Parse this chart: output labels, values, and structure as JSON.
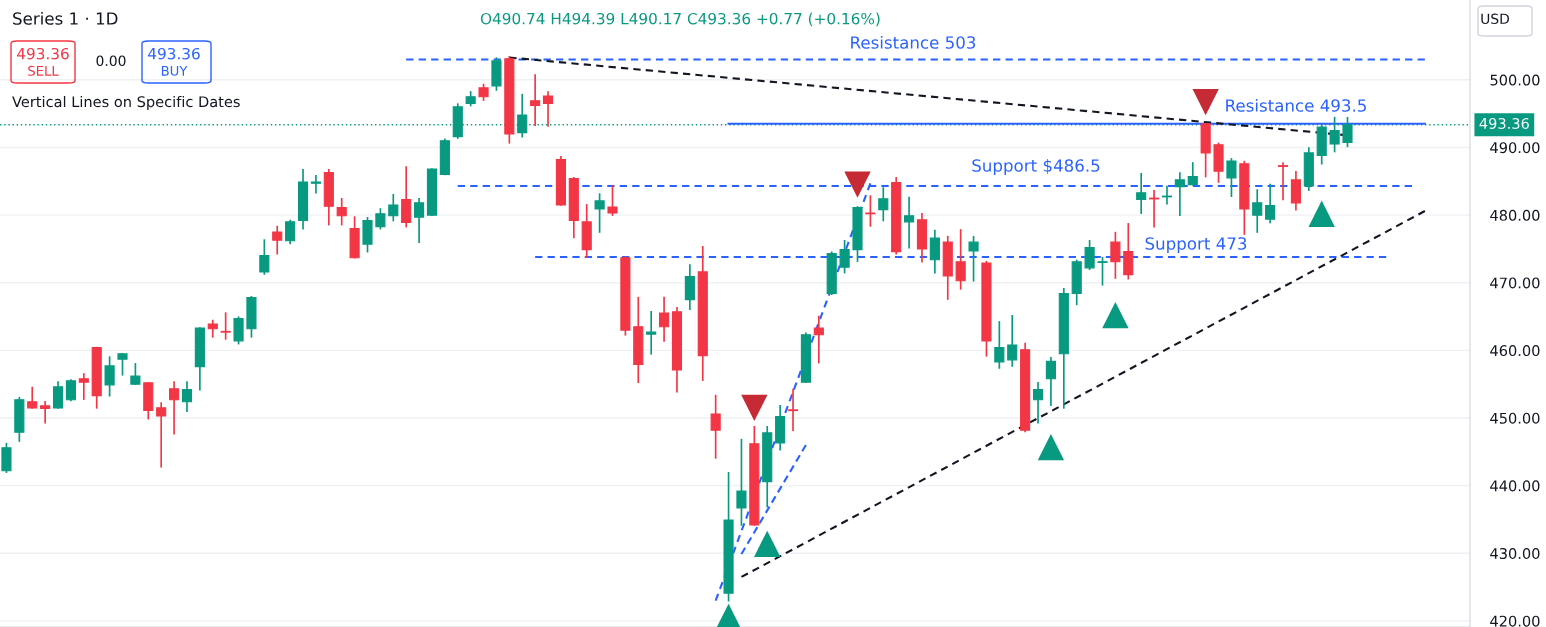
{
  "chart_data": {
    "type": "candlestick",
    "title": "Series 1 · 1D",
    "categories": [
      null,
      null,
      null,
      null,
      null,
      null,
      null,
      null,
      null,
      null,
      null,
      null,
      null,
      null,
      null,
      null,
      null,
      null,
      null,
      null,
      null,
      null,
      null,
      null,
      null,
      null,
      null,
      null,
      null,
      null,
      null,
      null,
      null,
      null,
      null,
      null,
      null,
      null,
      null,
      null,
      null,
      null,
      null,
      null,
      null,
      null,
      null,
      null,
      null,
      null,
      null,
      null,
      null,
      null,
      null,
      null,
      null,
      null,
      null,
      null,
      null,
      null,
      null,
      null,
      null,
      null,
      null,
      null,
      null,
      null,
      null,
      null,
      null,
      null,
      null,
      null,
      null,
      null,
      null,
      null,
      null,
      null,
      null,
      null,
      null,
      null,
      null,
      null,
      null,
      null,
      null,
      null,
      null,
      null,
      null,
      null,
      null,
      null,
      null,
      null,
      null,
      null,
      null,
      null,
      null,
      null,
      null,
      null,
      null,
      null,
      null,
      null,
      null,
      null
    ],
    "ohlc": [
      [
        442.2,
        446.2,
        442.0,
        445.6
      ],
      [
        447.9,
        453.0,
        446.6,
        452.7
      ],
      [
        452.4,
        454.5,
        451.5,
        451.5
      ],
      [
        451.8,
        452.4,
        449.3,
        451.4
      ],
      [
        451.5,
        455.3,
        451.5,
        454.6
      ],
      [
        452.7,
        455.6,
        452.6,
        455.5
      ],
      [
        455.8,
        456.5,
        452.8,
        455.3
      ],
      [
        460.4,
        460.4,
        451.5,
        453.3
      ],
      [
        454.9,
        459.0,
        453.3,
        457.7
      ],
      [
        458.7,
        459.5,
        456.4,
        459.5
      ],
      [
        455.0,
        458.0,
        455.0,
        456.2
      ],
      [
        455.2,
        455.2,
        449.9,
        451.1
      ],
      [
        451.5,
        452.2,
        442.8,
        450.3
      ],
      [
        454.3,
        455.3,
        447.7,
        452.7
      ],
      [
        452.4,
        455.3,
        451.0,
        454.2
      ],
      [
        457.6,
        463.3,
        454.2,
        463.3
      ],
      [
        463.9,
        464.4,
        462.0,
        463.2
      ],
      [
        462.8,
        465.5,
        461.7,
        462.7
      ],
      [
        461.4,
        464.9,
        461.0,
        464.7
      ],
      [
        463.2,
        467.9,
        462.0,
        467.8
      ],
      [
        471.6,
        476.3,
        471.3,
        474.0
      ],
      [
        477.5,
        478.3,
        474.3,
        476.3
      ],
      [
        476.2,
        479.2,
        475.8,
        479.0
      ],
      [
        479.2,
        486.7,
        478.0,
        484.9
      ],
      [
        484.7,
        485.8,
        483.3,
        484.9
      ],
      [
        486.3,
        486.7,
        478.6,
        481.3
      ],
      [
        481.1,
        482.4,
        478.6,
        479.9
      ],
      [
        478.0,
        479.7,
        473.7,
        473.7
      ],
      [
        475.7,
        479.6,
        474.6,
        479.2
      ],
      [
        478.3,
        480.9,
        478.0,
        480.2
      ],
      [
        479.9,
        483.0,
        479.2,
        481.5
      ],
      [
        482.3,
        487.1,
        478.3,
        478.9
      ],
      [
        479.7,
        482.4,
        476.0,
        481.8
      ],
      [
        480.0,
        486.8,
        480.0,
        486.8
      ],
      [
        486.0,
        491.2,
        486.0,
        491.0
      ],
      [
        491.6,
        496.4,
        491.4,
        496.0
      ],
      [
        496.5,
        498.2,
        496.2,
        497.5
      ],
      [
        498.8,
        499.3,
        497.0,
        497.5
      ],
      [
        499.1,
        503.2,
        498.5,
        502.8
      ],
      [
        503.1,
        503.4,
        490.7,
        492.0
      ],
      [
        492.2,
        497.8,
        491.6,
        494.8
      ],
      [
        496.9,
        500.7,
        493.3,
        496.2
      ],
      [
        497.6,
        498.2,
        493.2,
        496.5
      ],
      [
        488.2,
        488.6,
        481.5,
        481.5
      ],
      [
        485.4,
        485.5,
        476.7,
        479.2
      ],
      [
        479.0,
        481.5,
        473.8,
        474.9
      ],
      [
        480.9,
        483.1,
        477.5,
        482.1
      ],
      [
        481.2,
        484.3,
        480.0,
        480.3
      ],
      [
        473.7,
        473.8,
        462.3,
        463.0
      ],
      [
        463.5,
        467.8,
        455.3,
        457.9
      ],
      [
        462.4,
        465.7,
        459.5,
        462.7
      ],
      [
        465.5,
        467.8,
        461.4,
        463.5
      ],
      [
        465.7,
        466.3,
        453.9,
        457.1
      ],
      [
        467.5,
        472.6,
        466.1,
        470.9
      ],
      [
        471.6,
        475.3,
        455.6,
        459.2
      ],
      [
        450.6,
        453.3,
        444.1,
        448.2
      ],
      [
        424.1,
        441.9,
        423.0,
        434.9
      ],
      [
        436.7,
        446.8,
        434.2,
        439.2
      ],
      [
        446.2,
        448.7,
        434.2,
        434.2
      ],
      [
        440.6,
        448.7,
        436.9,
        447.8
      ],
      [
        446.3,
        451.8,
        445.3,
        450.2
      ],
      [
        451.2,
        454.2,
        448.2,
        451.1
      ],
      [
        455.3,
        462.5,
        455.3,
        462.3
      ],
      [
        463.3,
        465.0,
        458.2,
        462.3
      ],
      [
        468.4,
        474.5,
        468.3,
        474.3
      ],
      [
        472.3,
        476.2,
        471.5,
        474.9
      ],
      [
        474.9,
        481.2,
        473.2,
        481.1
      ],
      [
        480.3,
        482.8,
        478.4,
        480.2
      ],
      [
        480.8,
        484.0,
        479.2,
        482.4
      ],
      [
        484.8,
        485.5,
        474.3,
        474.6
      ],
      [
        479.0,
        482.6,
        475.2,
        479.9
      ],
      [
        479.3,
        480.2,
        473.1,
        475.0
      ],
      [
        473.4,
        477.7,
        471.5,
        476.6
      ],
      [
        476.0,
        476.8,
        467.6,
        471.0
      ],
      [
        473.1,
        477.8,
        469.1,
        470.3
      ],
      [
        474.7,
        476.8,
        470.3,
        476.0
      ],
      [
        472.9,
        473.1,
        459.2,
        461.4
      ],
      [
        458.3,
        464.2,
        457.4,
        460.4
      ],
      [
        458.6,
        465.1,
        457.7,
        460.8
      ],
      [
        460.1,
        461.0,
        448.0,
        448.2
      ],
      [
        452.7,
        455.2,
        449.3,
        454.2
      ],
      [
        455.8,
        458.9,
        451.9,
        458.4
      ],
      [
        459.5,
        469.1,
        451.5,
        468.4
      ],
      [
        468.4,
        473.3,
        466.8,
        473.1
      ],
      [
        472.2,
        476.2,
        472.0,
        475.2
      ],
      [
        473.0,
        473.7,
        469.7,
        473.1
      ],
      [
        476.0,
        477.4,
        470.7,
        473.1
      ],
      [
        474.6,
        478.7,
        470.6,
        471.2
      ],
      [
        482.3,
        486.1,
        480.3,
        483.3
      ],
      [
        482.5,
        483.6,
        478.3,
        482.4
      ],
      [
        482.7,
        484.2,
        481.7,
        482.8
      ],
      [
        484.2,
        486.2,
        480.0,
        485.2
      ],
      [
        484.5,
        487.7,
        484.5,
        485.7
      ],
      [
        493.5,
        493.5,
        485.7,
        489.2
      ],
      [
        490.4,
        490.6,
        484.9,
        486.5
      ],
      [
        485.5,
        488.3,
        482.8,
        488.0
      ],
      [
        487.6,
        487.9,
        477.2,
        480.9
      ],
      [
        480.0,
        483.7,
        477.5,
        481.8
      ],
      [
        479.4,
        484.5,
        478.9,
        481.4
      ],
      [
        487.3,
        487.7,
        482.3,
        487.2
      ],
      [
        485.2,
        486.4,
        480.8,
        481.8
      ],
      [
        484.3,
        489.9,
        483.7,
        489.2
      ],
      [
        488.8,
        493.3,
        487.6,
        493.0
      ],
      [
        490.5,
        494.4,
        489.4,
        492.5
      ],
      [
        490.74,
        494.39,
        490.17,
        493.36
      ],
      null,
      null,
      null,
      null,
      null,
      null,
      null,
      null,
      null
    ],
    "series": [
      {
        "type": "line",
        "values": [
          null,
          null,
          null,
          null,
          null,
          null,
          null,
          null,
          null,
          null,
          null,
          null,
          null,
          null,
          null,
          null,
          null,
          null,
          null,
          null,
          null,
          null,
          null,
          null,
          null,
          null,
          null,
          null,
          null,
          null,
          null,
          503,
          null,
          null,
          null,
          null,
          null,
          null,
          null,
          null,
          null,
          null,
          null,
          null,
          null,
          null,
          null,
          null,
          null,
          null,
          null,
          null,
          null,
          null,
          null,
          null,
          null,
          null,
          null,
          null,
          null,
          null,
          null,
          null,
          null,
          null,
          null,
          null,
          null,
          null,
          null,
          null,
          null,
          null,
          null,
          null,
          null,
          null,
          null,
          null,
          null,
          null,
          null,
          null,
          null,
          null,
          null,
          null,
          null,
          null,
          null,
          null,
          null,
          null,
          null,
          null,
          null,
          null,
          null,
          null,
          null,
          null,
          null,
          null,
          null,
          null,
          null,
          null,
          null,
          null,
          503,
          null,
          null,
          null
        ],
        "color": "#2962ff",
        "line_style": "dashed"
      },
      {
        "type": "line",
        "values": [
          null,
          null,
          null,
          null,
          null,
          null,
          null,
          null,
          null,
          null,
          null,
          null,
          null,
          null,
          null,
          null,
          null,
          null,
          null,
          null,
          null,
          null,
          null,
          null,
          null,
          null,
          null,
          null,
          null,
          null,
          null,
          null,
          null,
          null,
          null,
          null,
          null,
          null,
          null,
          null,
          null,
          null,
          null,
          null,
          null,
          null,
          null,
          null,
          null,
          null,
          null,
          null,
          null,
          null,
          null,
          null,
          493.5,
          null,
          null,
          null,
          null,
          null,
          null,
          null,
          null,
          null,
          null,
          null,
          null,
          null,
          null,
          null,
          null,
          null,
          null,
          null,
          null,
          null,
          null,
          null,
          null,
          null,
          null,
          null,
          null,
          null,
          null,
          null,
          null,
          null,
          null,
          null,
          null,
          null,
          null,
          null,
          null,
          null,
          null,
          null,
          null,
          null,
          null,
          null,
          null,
          null,
          null,
          null,
          null,
          null,
          493.5,
          null,
          null,
          null
        ],
        "color": "#2962ff",
        "line_style": "solid"
      },
      {
        "type": "line",
        "values": [
          null,
          null,
          null,
          null,
          null,
          null,
          null,
          null,
          null,
          null,
          null,
          null,
          null,
          null,
          null,
          null,
          null,
          null,
          null,
          null,
          null,
          null,
          null,
          null,
          null,
          null,
          null,
          null,
          null,
          null,
          null,
          null,
          null,
          null,
          null,
          484.3,
          null,
          null,
          null,
          null,
          null,
          null,
          null,
          null,
          null,
          null,
          null,
          null,
          null,
          null,
          null,
          null,
          null,
          null,
          null,
          null,
          null,
          null,
          null,
          null,
          null,
          null,
          null,
          null,
          null,
          null,
          null,
          null,
          null,
          null,
          null,
          null,
          null,
          null,
          null,
          null,
          null,
          null,
          null,
          null,
          null,
          null,
          null,
          null,
          null,
          null,
          null,
          null,
          null,
          null,
          null,
          null,
          null,
          null,
          null,
          null,
          null,
          null,
          null,
          null,
          null,
          null,
          null,
          null,
          null,
          null,
          null,
          null,
          null,
          484.3,
          null,
          null,
          null,
          null
        ],
        "color": "#2962ff",
        "line_style": "dashed"
      },
      {
        "type": "line",
        "values": [
          null,
          null,
          null,
          null,
          null,
          null,
          null,
          null,
          null,
          null,
          null,
          null,
          null,
          null,
          null,
          null,
          null,
          null,
          null,
          null,
          null,
          null,
          null,
          null,
          null,
          null,
          null,
          null,
          null,
          null,
          null,
          null,
          null,
          null,
          null,
          null,
          null,
          null,
          null,
          null,
          null,
          473.8,
          null,
          null,
          null,
          null,
          null,
          null,
          null,
          null,
          null,
          null,
          null,
          null,
          null,
          null,
          null,
          null,
          null,
          null,
          null,
          null,
          null,
          null,
          null,
          null,
          null,
          null,
          null,
          null,
          null,
          null,
          null,
          null,
          null,
          null,
          null,
          null,
          null,
          null,
          null,
          null,
          null,
          null,
          null,
          null,
          null,
          null,
          null,
          null,
          null,
          null,
          null,
          null,
          null,
          null,
          null,
          null,
          null,
          null,
          null,
          null,
          null,
          null,
          null,
          null,
          null,
          473.8,
          null,
          null,
          null,
          null,
          null,
          null
        ],
        "color": "#2962ff",
        "line_style": "dashed"
      },
      {
        "type": "line",
        "values": [
          null,
          null,
          null,
          null,
          null,
          null,
          null,
          null,
          null,
          null,
          null,
          null,
          null,
          null,
          null,
          null,
          null,
          null,
          null,
          null,
          null,
          null,
          null,
          null,
          null,
          null,
          null,
          null,
          null,
          null,
          null,
          null,
          null,
          null,
          null,
          null,
          null,
          null,
          null,
          503.3,
          null,
          null,
          null,
          null,
          null,
          null,
          null,
          null,
          null,
          null,
          null,
          null,
          null,
          null,
          null,
          null,
          null,
          null,
          null,
          null,
          null,
          null,
          null,
          null,
          null,
          null,
          null,
          null,
          null,
          null,
          null,
          null,
          null,
          null,
          null,
          null,
          null,
          null,
          null,
          null,
          null,
          null,
          null,
          null,
          null,
          null,
          null,
          null,
          null,
          null,
          null,
          null,
          null,
          null,
          null,
          null,
          null,
          null,
          null,
          null,
          null,
          null,
          null,
          null,
          491.8,
          null,
          null,
          null,
          null,
          null,
          null,
          null,
          null,
          null
        ],
        "color": "#131722",
        "line_style": "dashed"
      },
      {
        "type": "line",
        "values": [
          null,
          null,
          null,
          null,
          null,
          null,
          null,
          null,
          null,
          null,
          null,
          null,
          null,
          null,
          null,
          null,
          null,
          null,
          null,
          null,
          null,
          null,
          null,
          null,
          null,
          null,
          null,
          null,
          null,
          null,
          null,
          null,
          null,
          null,
          null,
          null,
          null,
          null,
          null,
          null,
          null,
          null,
          null,
          null,
          null,
          null,
          null,
          null,
          null,
          null,
          null,
          null,
          null,
          null,
          null,
          null,
          null,
          426.5,
          null,
          null,
          null,
          null,
          null,
          null,
          null,
          null,
          null,
          null,
          null,
          null,
          null,
          null,
          null,
          null,
          null,
          null,
          null,
          null,
          null,
          null,
          null,
          null,
          null,
          null,
          null,
          null,
          null,
          null,
          null,
          null,
          null,
          null,
          null,
          null,
          null,
          null,
          null,
          null,
          null,
          null,
          null,
          null,
          null,
          null,
          null,
          null,
          null,
          null,
          null,
          null,
          480.6,
          null,
          null,
          null
        ],
        "color": "#131722",
        "line_style": "dashed"
      },
      {
        "type": "line",
        "values": [
          null,
          null,
          null,
          null,
          null,
          null,
          null,
          null,
          null,
          null,
          null,
          null,
          null,
          null,
          null,
          null,
          null,
          null,
          null,
          null,
          null,
          null,
          null,
          null,
          null,
          null,
          null,
          null,
          null,
          null,
          null,
          null,
          null,
          null,
          null,
          null,
          null,
          null,
          null,
          null,
          null,
          null,
          null,
          null,
          null,
          null,
          null,
          null,
          null,
          null,
          null,
          null,
          null,
          null,
          null,
          423.0,
          null,
          null,
          null,
          null,
          null,
          null,
          null,
          null,
          null,
          null,
          null,
          484.7,
          null,
          null,
          null,
          null,
          null,
          null,
          null,
          null,
          null,
          null,
          null,
          null,
          null,
          null,
          null,
          null,
          null,
          null,
          null,
          null,
          null,
          null,
          null,
          null,
          null,
          null,
          null,
          null,
          null,
          null,
          null,
          null,
          null,
          null,
          null,
          null,
          null,
          null,
          null,
          null,
          null,
          null,
          null,
          null,
          null,
          null
        ],
        "color": "#2962ff",
        "line_style": "dashed"
      },
      {
        "type": "line",
        "values": [
          null,
          null,
          null,
          null,
          null,
          null,
          null,
          null,
          null,
          null,
          null,
          null,
          null,
          null,
          null,
          null,
          null,
          null,
          null,
          null,
          null,
          null,
          null,
          null,
          null,
          null,
          null,
          null,
          null,
          null,
          null,
          null,
          null,
          null,
          null,
          null,
          null,
          null,
          null,
          null,
          null,
          null,
          null,
          null,
          null,
          null,
          null,
          null,
          null,
          null,
          null,
          null,
          null,
          null,
          null,
          null,
          null,
          429.9,
          null,
          null,
          null,
          null,
          446.0,
          null,
          null,
          null,
          null,
          null,
          null,
          null,
          null,
          null,
          null,
          null,
          null,
          null,
          null,
          null,
          null,
          null,
          null,
          null,
          null,
          null,
          null,
          null,
          null,
          null,
          null,
          null,
          null,
          null,
          null,
          null,
          null,
          null,
          null,
          null,
          null,
          null,
          null,
          null,
          null,
          null,
          null,
          null,
          null,
          null,
          null,
          null,
          null,
          null,
          null,
          null
        ],
        "color": "#2962ff",
        "line_style": "dashed"
      },
      {
        "type": "scatter",
        "values": [
          null,
          null,
          null,
          null,
          null,
          null,
          null,
          null,
          null,
          null,
          null,
          null,
          null,
          null,
          null,
          null,
          null,
          null,
          null,
          null,
          null,
          null,
          null,
          null,
          null,
          null,
          null,
          null,
          null,
          null,
          null,
          null,
          null,
          null,
          null,
          null,
          null,
          null,
          null,
          null,
          null,
          null,
          null,
          null,
          null,
          null,
          null,
          null,
          null,
          null,
          null,
          null,
          null,
          null,
          null,
          null,
          420.6,
          null,
          null,
          431.4,
          null,
          null,
          null,
          null,
          null,
          null,
          null,
          null,
          null,
          null,
          null,
          null,
          null,
          null,
          null,
          null,
          null,
          null,
          null,
          null,
          null,
          445.7,
          null,
          null,
          null,
          null,
          465.2,
          null,
          null,
          null,
          null,
          null,
          null,
          null,
          null,
          null,
          null,
          null,
          null,
          null,
          null,
          null,
          480.2,
          null,
          null,
          null,
          null,
          null,
          null,
          null,
          null,
          null,
          null,
          null
        ],
        "color": "#089981",
        "marker": "triangle"
      },
      {
        "type": "scatter",
        "values": [
          null,
          null,
          null,
          null,
          null,
          null,
          null,
          null,
          null,
          null,
          null,
          null,
          null,
          null,
          null,
          null,
          null,
          null,
          null,
          null,
          null,
          null,
          null,
          null,
          null,
          null,
          null,
          null,
          null,
          null,
          null,
          null,
          null,
          null,
          null,
          null,
          null,
          null,
          null,
          null,
          null,
          null,
          null,
          null,
          null,
          null,
          null,
          null,
          null,
          null,
          null,
          null,
          null,
          null,
          null,
          null,
          null,
          null,
          451.5,
          null,
          null,
          null,
          null,
          null,
          null,
          null,
          484.5,
          null,
          null,
          null,
          null,
          null,
          null,
          null,
          null,
          null,
          null,
          null,
          null,
          null,
          null,
          null,
          null,
          null,
          null,
          null,
          null,
          null,
          null,
          null,
          null,
          null,
          null,
          496.7,
          null,
          null,
          null,
          null,
          null,
          null,
          null,
          null,
          null,
          null,
          null,
          null,
          null,
          null,
          null,
          null,
          null,
          null,
          null,
          null
        ],
        "color": "#c62a35",
        "marker": "triangle"
      }
    ],
    "ref_lines": [
      {
        "axis": "y",
        "value": 493.36,
        "label": "493.36",
        "color": "#089981",
        "line_style": "dotted"
      }
    ],
    "annotations": [
      "Resistance 503",
      "Resistance 493.5",
      "Support $486.5",
      "Support 473",
      "O490.74 H494.39 L490.17 C493.36 +0.77 (+0.16%)",
      "493.36",
      "SELL",
      "0.00",
      "493.36",
      "BUY",
      "Vertical Lines on Specific Dates",
      "USD"
    ],
    "ylim": [
      419.1,
      511.8
    ],
    "yticks": [
      {
        "value": 420,
        "label": "420.00"
      },
      {
        "value": 430,
        "label": "430.00"
      },
      {
        "value": 440,
        "label": "440.00"
      },
      {
        "value": 450,
        "label": "450.00"
      },
      {
        "value": 460,
        "label": "460.00"
      },
      {
        "value": 470,
        "label": "470.00"
      },
      {
        "value": 480,
        "label": "480.00"
      },
      {
        "value": 490,
        "label": "490.00"
      },
      {
        "value": 500,
        "label": "500.00"
      }
    ],
    "grid": "y"
  }
}
